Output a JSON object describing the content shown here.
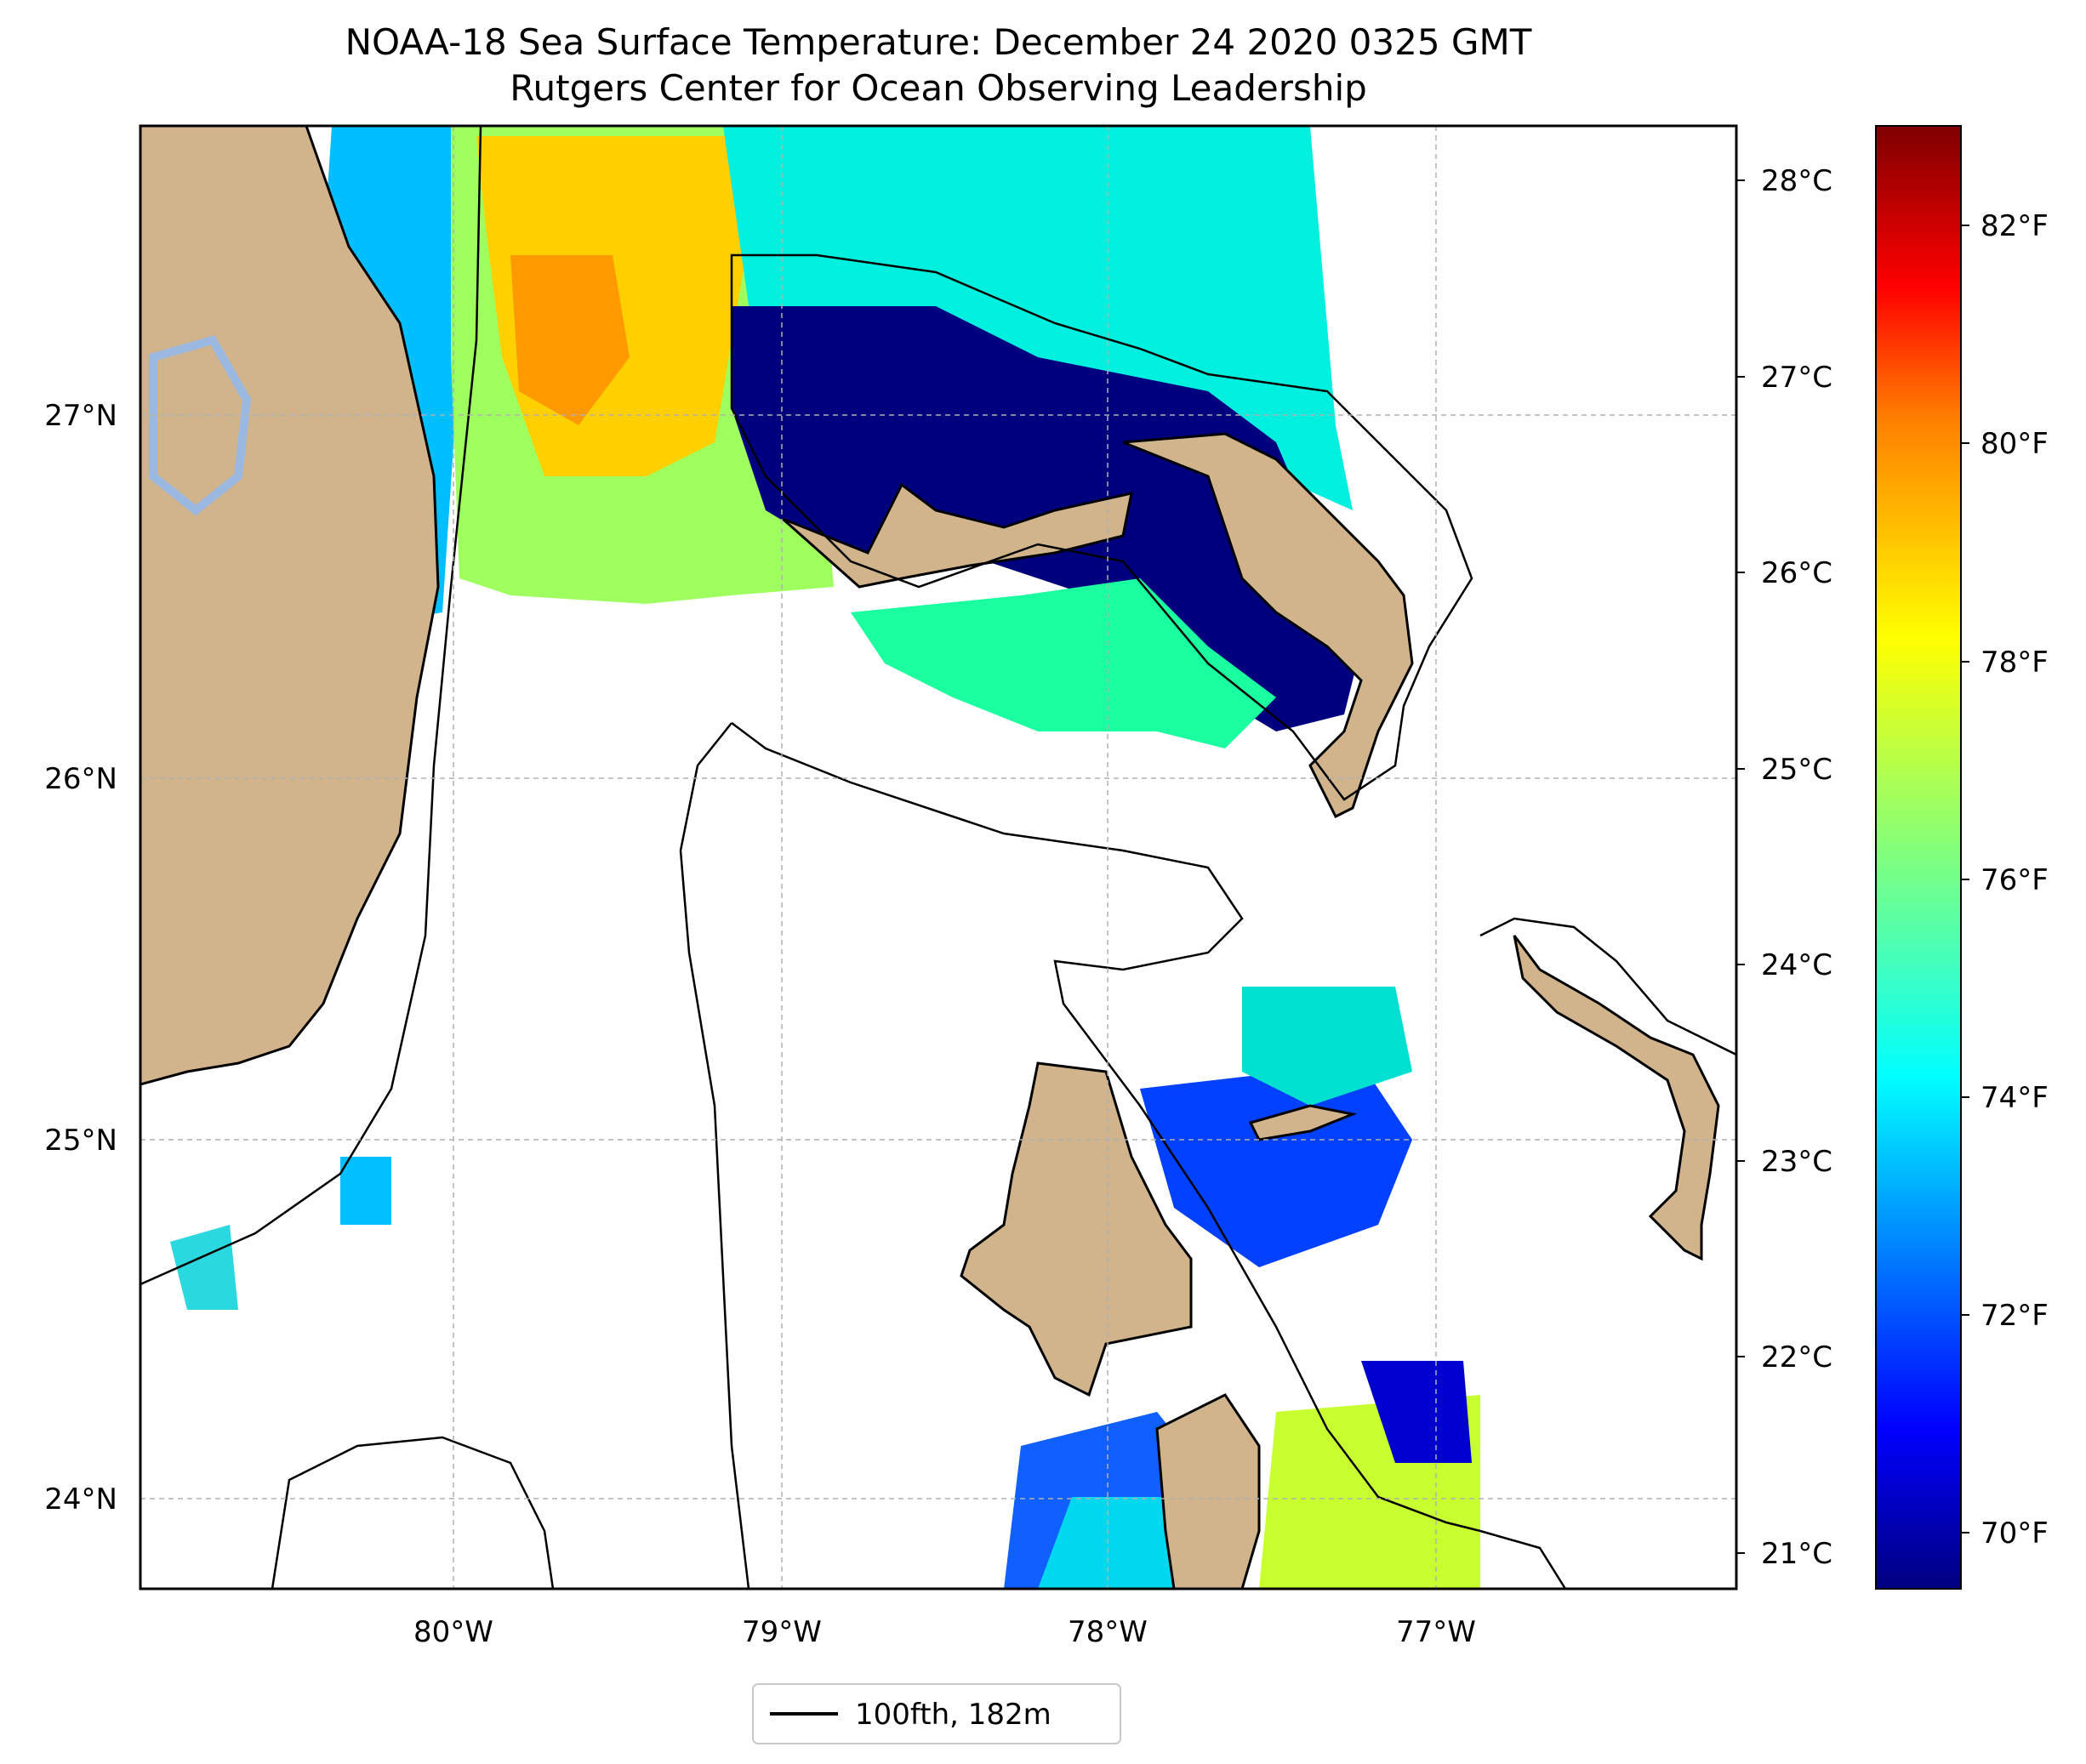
{
  "title": {
    "line1": "NOAA-18 Sea Surface Temperature: December 24 2020 0325 GMT",
    "line2": "Rutgers Center for Ocean Observing Leadership"
  },
  "map": {
    "lat_labels": [
      "27°N",
      "26°N",
      "25°N",
      "24°N"
    ],
    "lon_labels": [
      "80°W",
      "79°W",
      "78°W",
      "77°W"
    ],
    "gridlines": "dashed",
    "colors": {
      "land": "#d2b48c",
      "coast": "#000000",
      "ocean_nodata": "#ffffff"
    }
  },
  "legend": {
    "entries": [
      {
        "label": "100fth, 182m",
        "style": "solid black line"
      }
    ]
  },
  "colorbar": {
    "colormap": "jet",
    "celsius_ticks": [
      "28°C",
      "27°C",
      "26°C",
      "25°C",
      "24°C",
      "23°C",
      "22°C",
      "21°C"
    ],
    "fahrenheit_ticks": [
      "82°F",
      "80°F",
      "78°F",
      "76°F",
      "74°F",
      "72°F",
      "70°F"
    ],
    "stops": [
      "#00007f",
      "#0000ff",
      "#007fff",
      "#00ffff",
      "#7fff7f",
      "#ffff00",
      "#ff7f00",
      "#ff0000",
      "#7f0000"
    ]
  }
}
